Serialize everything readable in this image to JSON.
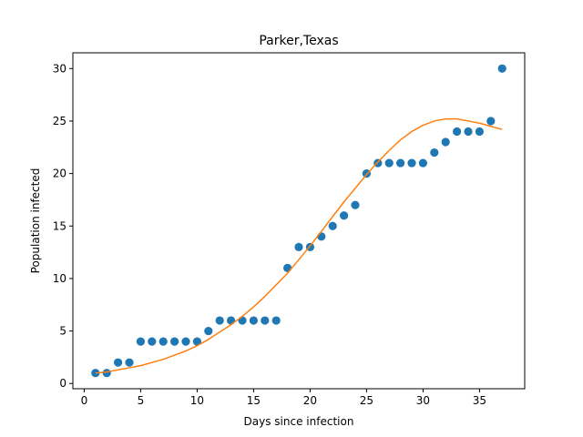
{
  "chart_data": {
    "type": "scatter",
    "title": "Parker,Texas",
    "xlabel": "Days since infection",
    "ylabel": "Population infected",
    "xlim": [
      -1,
      39
    ],
    "ylim": [
      -0.5,
      31.5
    ],
    "xticks": [
      0,
      5,
      10,
      15,
      20,
      25,
      30,
      35
    ],
    "yticks": [
      0,
      5,
      10,
      15,
      20,
      25,
      30
    ],
    "grid": false,
    "series": [
      {
        "kind": "scatter",
        "color": "#1f77b4",
        "x": [
          1,
          2,
          3,
          4,
          5,
          6,
          7,
          8,
          9,
          10,
          11,
          12,
          13,
          14,
          15,
          16,
          17,
          18,
          19,
          20,
          21,
          22,
          23,
          24,
          25,
          26,
          27,
          28,
          29,
          30,
          31,
          32,
          33,
          34,
          35,
          36,
          37
        ],
        "y": [
          1,
          1,
          2,
          2,
          4,
          4,
          4,
          4,
          4,
          4,
          5,
          6,
          6,
          6,
          6,
          6,
          6,
          11,
          13,
          13,
          14,
          15,
          16,
          17,
          20,
          21,
          21,
          21,
          21,
          21,
          22,
          23,
          24,
          24,
          24,
          25,
          30
        ]
      },
      {
        "kind": "line",
        "color": "#ff7f0e",
        "x": [
          1,
          2,
          3,
          4,
          5,
          6,
          7,
          8,
          9,
          10,
          11,
          12,
          13,
          14,
          15,
          16,
          17,
          18,
          19,
          20,
          21,
          22,
          23,
          24,
          25,
          26,
          27,
          28,
          29,
          30,
          31,
          32,
          33,
          34,
          35,
          36,
          37
        ],
        "y": [
          1.0,
          1.1,
          1.3,
          1.5,
          1.7,
          2.0,
          2.3,
          2.7,
          3.1,
          3.6,
          4.2,
          4.9,
          5.6,
          6.4,
          7.3,
          8.3,
          9.4,
          10.5,
          11.8,
          13.1,
          14.5,
          15.9,
          17.3,
          18.6,
          19.9,
          21.1,
          22.2,
          23.2,
          24.0,
          24.6,
          25.0,
          25.2,
          25.2,
          25.0,
          24.8,
          24.5,
          24.2
        ]
      }
    ]
  }
}
